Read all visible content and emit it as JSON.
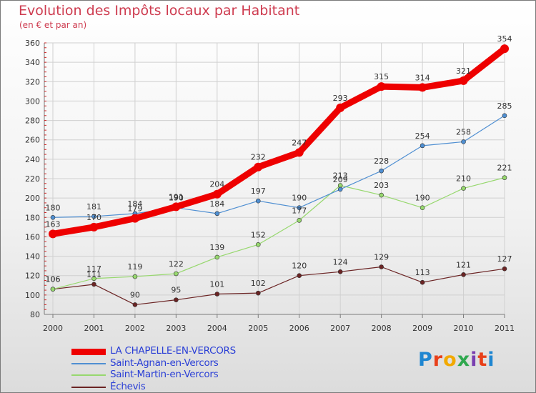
{
  "title": "Evolution des Impôts locaux par Habitant",
  "subtitle": "(en € et par an)",
  "brand": {
    "letters": [
      "P",
      "r",
      "o",
      "x",
      "i",
      "t",
      "i"
    ],
    "colors": [
      "#1f86d1",
      "#e8401a",
      "#f2a900",
      "#2fa84f",
      "#7a3fb0",
      "#e8401a",
      "#1f86d1"
    ]
  },
  "chart_data": {
    "type": "line",
    "title": "Evolution des Impôts locaux par Habitant",
    "subtitle": "(en € et par an)",
    "x": [
      "2000",
      "2001",
      "2002",
      "2003",
      "2004",
      "2005",
      "2006",
      "2007",
      "2008",
      "2009",
      "2010",
      "2011"
    ],
    "ylim": [
      80,
      360
    ],
    "yticks": [
      80,
      100,
      120,
      140,
      160,
      180,
      200,
      220,
      240,
      260,
      280,
      300,
      320,
      340,
      360
    ],
    "grid": true,
    "legend_position": "bottom-left",
    "series": [
      {
        "name": "LA CHAPELLE-EN-VERCORS",
        "color": "#ee0000",
        "values": [
          163,
          170,
          179,
          191,
          204,
          232,
          247,
          293,
          315,
          314,
          321,
          354
        ],
        "labels": [
          "163",
          "170",
          "179",
          "191",
          "204",
          "232",
          "247",
          "293",
          "315",
          "314",
          "321",
          "354"
        ]
      },
      {
        "name": "Saint-Agnan-en-Vercors",
        "color": "#4f8fd2",
        "values": [
          180,
          181,
          184,
          190,
          184,
          197,
          190,
          209,
          228,
          254,
          258,
          285
        ],
        "labels": [
          "180",
          "181",
          "184",
          "190",
          "184",
          "197",
          "190",
          "209",
          "228",
          "254",
          "258",
          "285"
        ]
      },
      {
        "name": "Saint-Martin-en-Vercors",
        "color": "#97d86e",
        "values": [
          106,
          117,
          119,
          122,
          139,
          152,
          177,
          213,
          203,
          190,
          210,
          221
        ],
        "labels": [
          "106",
          "117",
          "119",
          "122",
          "139",
          "152",
          "177",
          "213",
          "203",
          "190",
          "210",
          "221"
        ]
      },
      {
        "name": "Échevis",
        "color": "#6b2424",
        "values": [
          106,
          111,
          90,
          95,
          101,
          102,
          120,
          124,
          129,
          113,
          121,
          127
        ],
        "labels": [
          "106",
          "111",
          "90",
          "95",
          "101",
          "102",
          "120",
          "124",
          "129",
          "113",
          "121",
          "127"
        ]
      }
    ]
  }
}
